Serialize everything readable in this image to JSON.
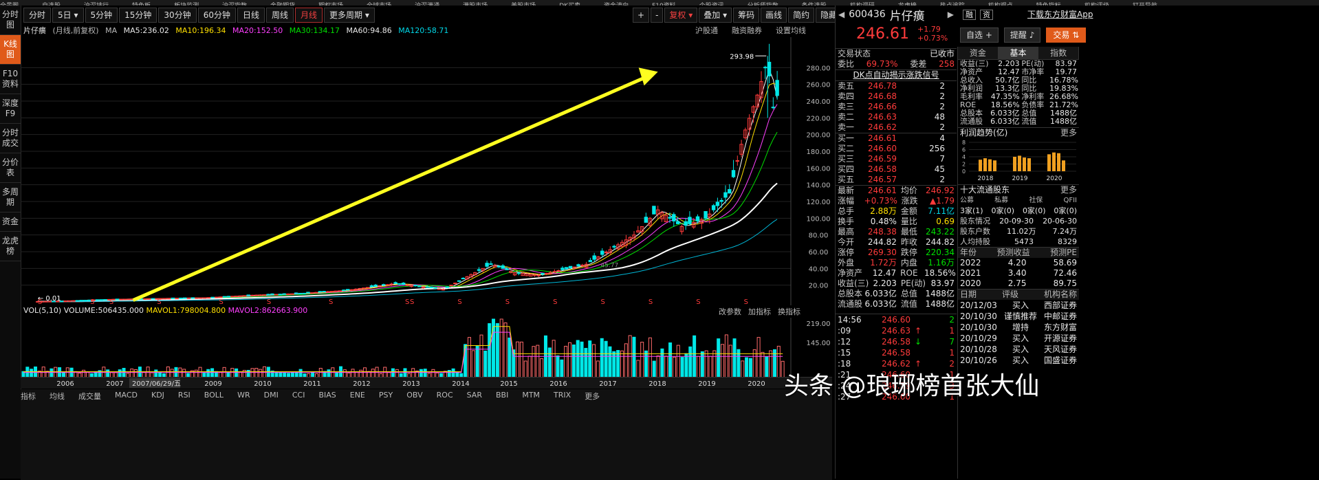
{
  "top_menu": [
    "全景图",
    "自选股",
    "沪深排行",
    "特色板",
    "板块监测",
    "沪深指数",
    "金融期货",
    "期权市场",
    "全球市场",
    "沪深港通",
    "港股市场",
    "美股市场",
    "DK买卖",
    "资金流向",
    "F10资料",
    "个股资讯",
    "分析师指数",
    "条件选股",
    "机构调研",
    "龙虎榜",
    "热点追踪",
    "机构观点",
    "特色指标",
    "机构评级",
    "打开导航"
  ],
  "toolbar": {
    "periods": [
      "分时",
      "5日",
      "5分钟",
      "15分钟",
      "30分钟",
      "60分钟",
      "日线",
      "周线",
      "月线",
      "更多周期"
    ],
    "active": "月线",
    "right": [
      "+",
      "-",
      "复权",
      "叠加",
      "筹码",
      "画线",
      "简约",
      "隐藏"
    ]
  },
  "sidenav": [
    "分时图",
    "K线图",
    "F10资料",
    "深度F9",
    "分时成交",
    "分价表",
    "多周期",
    "资金",
    "龙虎榜"
  ],
  "chart_header": {
    "name": "片仔癀",
    "mode": "(月线,前复权)",
    "ma_label": "MA",
    "ma5": "MA5:236.02",
    "ma10": "MA10:196.34",
    "ma20": "MA20:152.50",
    "ma30": "MA30:134.17",
    "ma60": "MA60:94.86",
    "ma120": "MA120:58.71",
    "links": [
      "沪股通",
      "融资融券",
      "设置均线"
    ]
  },
  "chart_data": {
    "type": "line",
    "title": "片仔癀 月线",
    "y_ticks": [
      "280.00",
      "260.00",
      "240.00",
      "220.00",
      "200.00",
      "180.00",
      "160.00",
      "140.00",
      "120.00",
      "100.00",
      "80.00",
      "60.00",
      "40.00",
      "20.00"
    ],
    "x_ticks": [
      "2006",
      "2007",
      "2007/06/29/五",
      "2009",
      "2010",
      "2011",
      "2012",
      "2013",
      "2014",
      "2015",
      "2016",
      "2017",
      "2018",
      "2019",
      "2020"
    ],
    "high_label": "293.98",
    "low_label": "0.01",
    "ma_value_label": "45.77",
    "price_points": [
      [
        2005.5,
        0.5
      ],
      [
        2006,
        1
      ],
      [
        2007,
        3
      ],
      [
        2008,
        4
      ],
      [
        2009,
        5
      ],
      [
        2010,
        8
      ],
      [
        2011,
        10
      ],
      [
        2012,
        14
      ],
      [
        2013,
        22
      ],
      [
        2014,
        15
      ],
      [
        2015,
        45
      ],
      [
        2015.5,
        35
      ],
      [
        2016,
        32
      ],
      [
        2017,
        45
      ],
      [
        2018,
        80
      ],
      [
        2018.5,
        110
      ],
      [
        2019,
        90
      ],
      [
        2019.5,
        100
      ],
      [
        2020,
        130
      ],
      [
        2020.3,
        200
      ],
      [
        2020.6,
        250
      ],
      [
        2020.8,
        290
      ],
      [
        2020.9,
        230
      ],
      [
        2021,
        246.61
      ]
    ],
    "ylim": [
      0,
      300
    ]
  },
  "vol_header": {
    "label": "VOL(5,10)",
    "volume": "VOLUME:506435.000",
    "mavol1": "MAVOL1:798004.800",
    "mavol2": "MAVOL2:862663.900",
    "links": [
      "改参数",
      "加指标",
      "换指标"
    ],
    "y_ticks": [
      "219.00",
      "145.00"
    ]
  },
  "stock": {
    "code": "600436",
    "name": "片仔癀",
    "tags": [
      "融",
      "资"
    ],
    "price": "246.61",
    "change": "+1.79",
    "change_pct": "+0.73%",
    "btn_self": "自选",
    "btn_alert": "提醒",
    "btn_trade": "交易",
    "download": "下载东方财富App"
  },
  "trade_status": {
    "label": "交易状态",
    "value": "已收市"
  },
  "weibi": {
    "label": "委比",
    "value": "69.73%",
    "label2": "委差",
    "value2": "258"
  },
  "dk_link": "DK点自动揭示涨跌信号",
  "asks": [
    {
      "label": "卖五",
      "price": "246.78",
      "vol": "2"
    },
    {
      "label": "卖四",
      "price": "246.68",
      "vol": "2"
    },
    {
      "label": "卖三",
      "price": "246.66",
      "vol": "2"
    },
    {
      "label": "卖二",
      "price": "246.63",
      "vol": "48"
    },
    {
      "label": "卖一",
      "price": "246.62",
      "vol": "2"
    }
  ],
  "bids": [
    {
      "label": "买一",
      "price": "246.61",
      "vol": "4"
    },
    {
      "label": "买二",
      "price": "246.60",
      "vol": "256"
    },
    {
      "label": "买三",
      "price": "246.59",
      "vol": "7"
    },
    {
      "label": "买四",
      "price": "246.58",
      "vol": "45"
    },
    {
      "label": "买五",
      "price": "246.57",
      "vol": "2"
    }
  ],
  "quote": [
    {
      "l1": "最新",
      "v1": "246.61",
      "c1": "red",
      "l2": "均价",
      "v2": "246.92",
      "c2": "red"
    },
    {
      "l1": "涨幅",
      "v1": "+0.73%",
      "c1": "red",
      "l2": "涨跌",
      "v2": "▲1.79",
      "c2": "red"
    },
    {
      "l1": "总手",
      "v1": "2.88万",
      "c1": "yellow",
      "l2": "金额",
      "v2": "7.11亿",
      "c2": "cyan"
    },
    {
      "l1": "换手",
      "v1": "0.48%",
      "c1": "white",
      "l2": "量比",
      "v2": "0.69",
      "c2": "yellow"
    },
    {
      "l1": "最高",
      "v1": "248.38",
      "c1": "red",
      "l2": "最低",
      "v2": "243.22",
      "c2": "green"
    },
    {
      "l1": "今开",
      "v1": "244.82",
      "c1": "white",
      "l2": "昨收",
      "v2": "244.82",
      "c2": "white"
    },
    {
      "l1": "涨停",
      "v1": "269.30",
      "c1": "red",
      "l2": "跌停",
      "v2": "220.34",
      "c2": "green"
    },
    {
      "l1": "外盘",
      "v1": "1.72万",
      "c1": "red",
      "l2": "内盘",
      "v2": "1.16万",
      "c2": "green"
    },
    {
      "l1": "净资产",
      "v1": "12.47",
      "c1": "white",
      "l2": "ROE",
      "v2": "18.56%",
      "c2": "white"
    },
    {
      "l1": "收益(三)",
      "v1": "2.203",
      "c1": "white",
      "l2": "PE(动)",
      "v2": "83.97",
      "c2": "white"
    },
    {
      "l1": "总股本",
      "v1": "6.033亿",
      "c1": "white",
      "l2": "总值",
      "v2": "1488亿",
      "c2": "white"
    },
    {
      "l1": "流通股",
      "v1": "6.033亿",
      "c1": "white",
      "l2": "流值",
      "v2": "1488亿",
      "c2": "white"
    }
  ],
  "ticks": [
    {
      "t": "14:56",
      "p": "246.60",
      "v": "2",
      "c": "green",
      "arrow": ""
    },
    {
      "t": ":09",
      "p": "246.63",
      "v": "1",
      "c": "red",
      "arrow": "↑"
    },
    {
      "t": ":12",
      "p": "246.58",
      "v": "7",
      "c": "green",
      "arrow": "↓"
    },
    {
      "t": ":15",
      "p": "246.58",
      "v": "1",
      "c": "red",
      "arrow": ""
    },
    {
      "t": ":18",
      "p": "246.62",
      "v": "2",
      "c": "red",
      "arrow": "↑"
    },
    {
      "t": ":21",
      "p": "246.60",
      "v": "1",
      "c": "red",
      "arrow": ""
    },
    {
      "t": ":24",
      "p": "246.59",
      "v": "3",
      "c": "red",
      "arrow": ""
    },
    {
      "t": ":27",
      "p": "246.60",
      "v": "1",
      "c": "red",
      "arrow": ""
    }
  ],
  "rp2": {
    "tabs": [
      "资金",
      "基本",
      "指数"
    ],
    "active_tab": "基本",
    "basic": [
      {
        "l1": "收益(三)",
        "v1": "2.203",
        "l2": "PE(动)",
        "v2": "83.97"
      },
      {
        "l1": "净资产",
        "v1": "12.47",
        "l2": "市净率",
        "v2": "19.77"
      },
      {
        "l1": "总收入",
        "v1": "50.7亿",
        "l2": "同比",
        "v2": "16.78%"
      },
      {
        "l1": "净利润",
        "v1": "13.3亿",
        "l2": "同比",
        "v2": "19.83%"
      },
      {
        "l1": "毛利率",
        "v1": "47.35%",
        "l2": "净利率",
        "v2": "26.68%"
      },
      {
        "l1": "ROE",
        "v1": "18.56%",
        "l2": "负债率",
        "v2": "21.72%"
      },
      {
        "l1": "总股本",
        "v1": "6.033亿",
        "l2": "总值",
        "v2": "1488亿"
      },
      {
        "l1": "流通股",
        "v1": "6.033亿",
        "l2": "流值",
        "v2": "1488亿"
      }
    ],
    "profit_title": "利润趋势(亿)",
    "more": "更多",
    "profit_y": [
      "8",
      "6",
      "4",
      "2",
      "0"
    ],
    "profit_years": [
      "2018",
      "2019",
      "2020"
    ],
    "profit_bars": [
      3.2,
      3.6,
      3.3,
      3.0,
      4.0,
      4.3,
      3.8,
      3.6,
      4.7,
      5.2,
      5.0,
      3.0
    ],
    "holders_title": "十大流通股东",
    "holders_head": [
      "公募",
      "私募",
      "社保",
      "QFII"
    ],
    "holders_vals": [
      "3家(1)",
      "0家(0)",
      "0家(0)",
      "0家(0)"
    ],
    "holders_rows": [
      {
        "l": "股东情况",
        "a": "20-09-30",
        "b": "20-06-30"
      },
      {
        "l": "股东户数",
        "a": "11.02万",
        "b": "7.24万"
      },
      {
        "l": "人均持股",
        "a": "5473",
        "b": "8329"
      }
    ],
    "eps_head": [
      "年份",
      "预测收益",
      "预测PE"
    ],
    "eps_rows": [
      {
        "y": "2022",
        "e": "4.20",
        "p": "58.69"
      },
      {
        "y": "2021",
        "e": "3.40",
        "p": "72.46"
      },
      {
        "y": "2020",
        "e": "2.75",
        "p": "89.75"
      }
    ],
    "rating_head": [
      "日期",
      "评级",
      "机构名称"
    ],
    "rating_rows": [
      {
        "d": "20/12/03",
        "r": "买入",
        "o": "西部证券"
      },
      {
        "d": "20/10/30",
        "r": "谨慎推荐",
        "o": "中邮证券"
      },
      {
        "d": "20/10/30",
        "r": "增持",
        "o": "东方财富"
      },
      {
        "d": "20/10/29",
        "r": "买入",
        "o": "开源证券"
      },
      {
        "d": "20/10/28",
        "r": "买入",
        "o": "天风证券"
      },
      {
        "d": "20/10/26",
        "r": "买入",
        "o": "国盛证券"
      }
    ]
  },
  "bottom_tabs": [
    "指标",
    "均线",
    "成交量",
    "MACD",
    "KDJ",
    "RSI",
    "BOLL",
    "WR",
    "DMI",
    "CCI",
    "BIAS",
    "ENE",
    "PSY",
    "OBV",
    "ROC",
    "SAR",
    "BBI",
    "MTM",
    "TRIX",
    "更多"
  ],
  "watermark": "头条 @琅琊榜首张大仙"
}
